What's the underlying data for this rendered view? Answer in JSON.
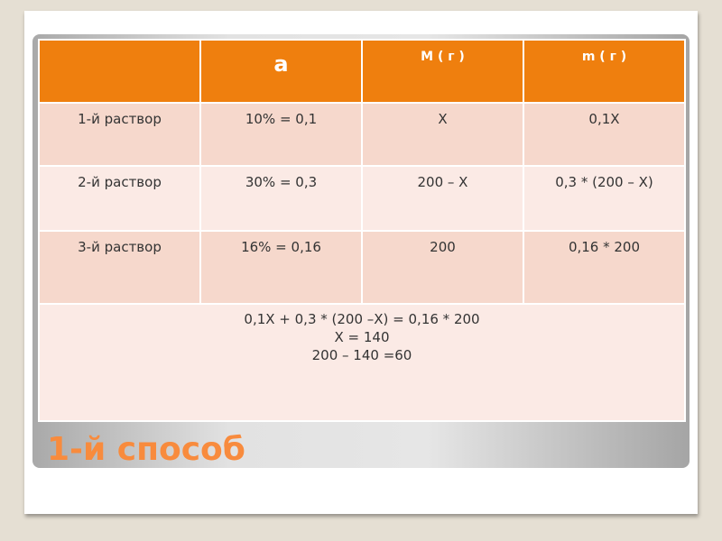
{
  "table": {
    "headers": [
      "",
      "a",
      "M ( г )",
      "m ( г )"
    ],
    "rows": [
      [
        "1-й раствор",
        "10%  = 0,1",
        "X",
        "0,1X"
      ],
      [
        "2-й раствор",
        "30% = 0,3",
        "200 – X",
        "0,3 * (200 – X)"
      ],
      [
        "3-й раствор",
        "16% = 0,16",
        "200",
        "0,16 * 200"
      ]
    ],
    "solution": [
      "0,1X + 0,3 * (200 –X) = 0,16 * 200",
      "X = 140",
      "200 – 140 =60"
    ]
  },
  "slide": {
    "title": "1-й способ"
  },
  "colors": {
    "header": "#ef7f0e",
    "row_dark": "#f6d8cc",
    "row_light": "#fbeae5",
    "title": "#f88b3d"
  }
}
